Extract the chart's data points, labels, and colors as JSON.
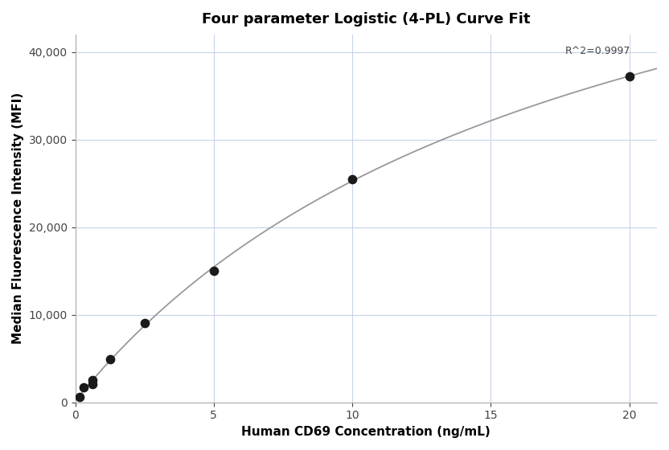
{
  "title": "Four parameter Logistic (4-PL) Curve Fit",
  "xlabel": "Human CD69 Concentration (ng/mL)",
  "ylabel": "Median Fluorescence Intensity (MFI)",
  "scatter_x": [
    0.156,
    0.3125,
    0.625,
    0.625,
    1.25,
    2.5,
    5.0,
    10.0,
    20.0
  ],
  "scatter_y": [
    650,
    1700,
    2100,
    2500,
    4900,
    9100,
    15000,
    25500,
    37200
  ],
  "xlim": [
    0,
    21
  ],
  "ylim": [
    0,
    42000
  ],
  "yticks": [
    0,
    10000,
    20000,
    30000,
    40000
  ],
  "xticks": [
    0,
    5,
    10,
    15,
    20
  ],
  "r_squared": "R^2=0.9997",
  "curve_color": "#999999",
  "scatter_color": "#1a1a1a",
  "bg_color": "#ffffff",
  "grid_color": "#c8d4e8",
  "title_fontsize": 13,
  "label_fontsize": 11,
  "tick_fontsize": 10,
  "4pl_A": 0.0,
  "4pl_B": 0.72,
  "4pl_C": 60.0,
  "4pl_D": 95000.0
}
